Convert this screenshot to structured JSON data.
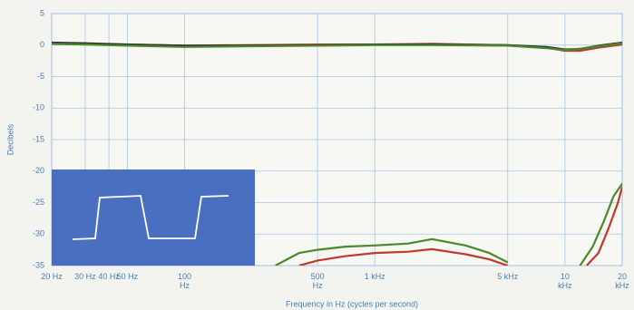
{
  "chart_data": {
    "type": "line",
    "x_label": "Frequency in Hz (cycles per second)",
    "y_label": "Decibels",
    "xlim": [
      20,
      20000
    ],
    "ylim": [
      -35,
      5
    ],
    "log_x": true,
    "grid": true,
    "xticks": [
      {
        "value": 20,
        "label": "20 Hz"
      },
      {
        "value": 30,
        "label": "30 Hz"
      },
      {
        "value": 40,
        "label": "40 Hz"
      },
      {
        "value": 50,
        "label": "50 Hz"
      },
      {
        "value": 100,
        "label": "100 Hz"
      },
      {
        "value": 500,
        "label": "500 Hz"
      },
      {
        "value": 1000,
        "label": "1 kHz"
      },
      {
        "value": 5000,
        "label": "5 kHz"
      },
      {
        "value": 10000,
        "label": "10 kHz"
      },
      {
        "value": 20000,
        "label": "20 kHz"
      }
    ],
    "yticks": [
      5,
      0,
      -5,
      -10,
      -15,
      -20,
      -25,
      -30,
      -35
    ],
    "series": [
      {
        "color": "#c0392b",
        "x": [
          20,
          30,
          50,
          100,
          200,
          500,
          1000,
          2000,
          5000,
          8000,
          10000,
          12000,
          15000,
          20000
        ],
        "values": [
          0.3,
          0.2,
          0.1,
          -0.1,
          0,
          0.1,
          0.1,
          0.2,
          0,
          -0.4,
          -0.9,
          -0.9,
          -0.4,
          0.1
        ]
      },
      {
        "color": "#2f2f2f",
        "x": [
          20,
          30,
          50,
          100,
          200,
          500,
          1000,
          2000,
          5000,
          8000,
          10000,
          12000,
          15000,
          20000
        ],
        "values": [
          0.4,
          0.3,
          0.1,
          -0.1,
          -0.1,
          0,
          0.1,
          0.1,
          0,
          -0.3,
          -0.7,
          -0.6,
          -0.1,
          0.4
        ]
      },
      {
        "color": "#4a8a2a",
        "x": [
          20,
          30,
          50,
          100,
          200,
          500,
          1000,
          2000,
          5000,
          8000,
          10000,
          12000,
          15000,
          20000
        ],
        "values": [
          0.2,
          0.1,
          -0.1,
          -0.3,
          -0.2,
          -0.1,
          0,
          0,
          -0.1,
          -0.5,
          -0.8,
          -0.6,
          -0.2,
          0.3
        ]
      },
      {
        "color": "#4a8a2a",
        "x": [
          300,
          400,
          500,
          700,
          1000,
          1500,
          2000,
          3000,
          4000,
          5000
        ],
        "values": [
          -35,
          -33,
          -32.5,
          -32,
          -31.8,
          -31.5,
          -30.8,
          -31.8,
          -33,
          -34.5
        ]
      },
      {
        "color": "#c0392b",
        "x": [
          400,
          500,
          700,
          1000,
          1500,
          2000,
          3000,
          4000,
          5000
        ],
        "values": [
          -35,
          -34.2,
          -33.5,
          -33,
          -32.8,
          -32.4,
          -33.2,
          -34,
          -35
        ]
      },
      {
        "color": "#4a8a2a",
        "x": [
          12000,
          14000,
          16000,
          18000,
          20000
        ],
        "values": [
          -35,
          -32,
          -28,
          -24,
          -22
        ]
      },
      {
        "color": "#c0392b",
        "x": [
          13000,
          15000,
          17000,
          19000,
          20000
        ],
        "values": [
          -35,
          -33,
          -29,
          -25,
          -22.5
        ]
      }
    ]
  }
}
